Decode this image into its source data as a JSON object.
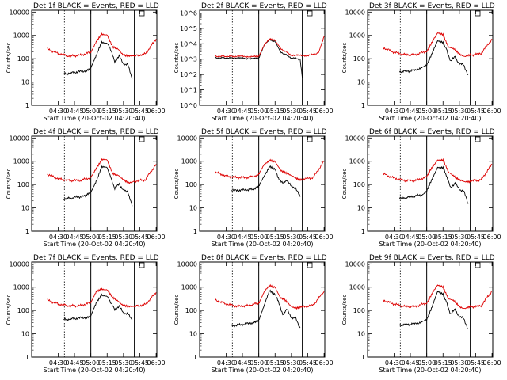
{
  "figure": {
    "grid": {
      "rows": 3,
      "cols": 3
    },
    "colors": {
      "events": "#000000",
      "lld": "#dd0000",
      "axes": "#000000",
      "background": "#ffffff"
    }
  },
  "chart_data": [
    {
      "type": "line",
      "title": "Det 1f BLACK = Events, RED = LLD",
      "xlabel": "Start Time (20-Oct-02 04:20:40)",
      "ylabel": "Counts/sec",
      "x_ticks": [
        "04:30",
        "04:45",
        "05:00",
        "05:15",
        "05:30",
        "05:45",
        "06:00"
      ],
      "y_tick_labels": [
        "1",
        "10",
        "100",
        "1000",
        "10000"
      ],
      "y_scale": "log",
      "ylim": [
        1,
        12000
      ],
      "xlim_minutes_after_start": [
        -15,
        100
      ],
      "vlines_solid": [
        "05:00",
        "05:40"
      ],
      "vlines_dotted": [
        "04:35",
        "05:40"
      ],
      "series": [
        {
          "color": "#000000",
          "x": [
            "04:35",
            "04:45",
            "04:55",
            "05:00",
            "05:05",
            "05:10",
            "05:15",
            "05:18",
            "05:22",
            "05:26",
            "05:30",
            "05:34",
            "05:38"
          ],
          "y": [
            22,
            26,
            30,
            42,
            130,
            520,
            480,
            250,
            75,
            130,
            60,
            55,
            14
          ]
        },
        {
          "color": "#dd0000",
          "x": [
            "04:20",
            "04:30",
            "04:40",
            "04:50",
            "05:00",
            "05:05",
            "05:10",
            "05:15",
            "05:20",
            "05:25",
            "05:30",
            "05:35",
            "05:40",
            "05:50",
            "06:00"
          ],
          "y": [
            260,
            170,
            130,
            140,
            190,
            500,
            1150,
            1100,
            300,
            260,
            150,
            125,
            130,
            160,
            700
          ]
        }
      ]
    },
    {
      "type": "line",
      "title": "Det 2f BLACK = Events, RED = LLD",
      "xlabel": "Start Time (20-Oct-02 04:20:40)",
      "ylabel": "Counts/sec",
      "x_ticks": [
        "04:30",
        "04:45",
        "05:00",
        "05:15",
        "05:30",
        "05:45",
        "06:00"
      ],
      "y_tick_labels": [
        "10^0",
        "10^1",
        "10^2",
        "10^3",
        "10^4",
        "10^5",
        "10^6"
      ],
      "y_scale": "log",
      "ylim": [
        1,
        1500000
      ],
      "xlim_minutes_after_start": [
        -15,
        100
      ],
      "vlines_solid": [
        "05:00",
        "05:40"
      ],
      "vlines_dotted": [
        "04:35",
        "05:40"
      ],
      "series": [
        {
          "color": "#000000",
          "x": [
            "04:20",
            "04:40",
            "04:55",
            "05:00",
            "05:05",
            "05:10",
            "05:15",
            "05:20",
            "05:30",
            "05:38",
            "05:40"
          ],
          "y": [
            1200,
            1150,
            1100,
            1200,
            8000,
            18000,
            15000,
            3000,
            1200,
            1000,
            60
          ]
        },
        {
          "color": "#dd0000",
          "x": [
            "04:20",
            "04:40",
            "04:55",
            "05:00",
            "05:05",
            "05:10",
            "05:15",
            "05:20",
            "05:30",
            "05:45",
            "05:55",
            "06:00"
          ],
          "y": [
            1500,
            1500,
            1500,
            1600,
            8000,
            20000,
            18000,
            5000,
            1800,
            1700,
            2500,
            30000
          ]
        }
      ]
    },
    {
      "type": "line",
      "title": "Det 3f BLACK = Events, RED = LLD",
      "xlabel": "Start Time (20-Oct-02 04:20:40)",
      "ylabel": "Counts/sec",
      "x_ticks": [
        "04:30",
        "04:45",
        "05:00",
        "05:15",
        "05:30",
        "05:45",
        "06:00"
      ],
      "y_tick_labels": [
        "1",
        "10",
        "100",
        "1000",
        "10000"
      ],
      "y_scale": "log",
      "ylim": [
        1,
        12000
      ],
      "xlim_minutes_after_start": [
        -15,
        100
      ],
      "vlines_solid": [
        "05:00",
        "05:40"
      ],
      "vlines_dotted": [
        "04:35",
        "05:40"
      ],
      "series": [
        {
          "color": "#000000",
          "x": [
            "04:35",
            "04:45",
            "04:55",
            "05:00",
            "05:05",
            "05:10",
            "05:15",
            "05:18",
            "05:22",
            "05:26",
            "05:30",
            "05:34",
            "05:38"
          ],
          "y": [
            28,
            30,
            38,
            55,
            180,
            550,
            500,
            260,
            80,
            120,
            60,
            55,
            20
          ]
        },
        {
          "color": "#dd0000",
          "x": [
            "04:20",
            "04:30",
            "04:40",
            "04:50",
            "05:00",
            "05:05",
            "05:10",
            "05:15",
            "05:20",
            "05:25",
            "05:30",
            "05:35",
            "05:40",
            "05:50",
            "06:00"
          ],
          "y": [
            300,
            190,
            150,
            150,
            210,
            550,
            1200,
            1100,
            330,
            250,
            160,
            130,
            140,
            170,
            700
          ]
        }
      ]
    },
    {
      "type": "line",
      "title": "Det 4f BLACK = Events, RED = LLD",
      "xlabel": "Start Time (20-Oct-02 04:20:40)",
      "ylabel": "Counts/sec",
      "x_ticks": [
        "04:30",
        "04:45",
        "05:00",
        "05:15",
        "05:30",
        "05:45",
        "06:00"
      ],
      "y_tick_labels": [
        "1",
        "10",
        "100",
        "1000",
        "10000"
      ],
      "y_scale": "log",
      "ylim": [
        1,
        12000
      ],
      "xlim_minutes_after_start": [
        -15,
        100
      ],
      "vlines_solid": [
        "05:00",
        "05:40"
      ],
      "vlines_dotted": [
        "04:35",
        "05:40"
      ],
      "series": [
        {
          "color": "#000000",
          "x": [
            "04:35",
            "04:45",
            "04:55",
            "05:00",
            "05:05",
            "05:10",
            "05:15",
            "05:18",
            "05:22",
            "05:26",
            "05:30",
            "05:34",
            "05:38"
          ],
          "y": [
            24,
            28,
            32,
            45,
            150,
            560,
            520,
            240,
            65,
            110,
            55,
            50,
            12
          ]
        },
        {
          "color": "#dd0000",
          "x": [
            "04:20",
            "04:30",
            "04:40",
            "04:50",
            "05:00",
            "05:05",
            "05:10",
            "05:15",
            "05:20",
            "05:25",
            "05:30",
            "05:35",
            "05:40",
            "05:50",
            "06:00"
          ],
          "y": [
            280,
            180,
            150,
            150,
            200,
            520,
            1150,
            1100,
            320,
            250,
            150,
            125,
            140,
            160,
            750
          ]
        }
      ]
    },
    {
      "type": "line",
      "title": "Det 5f BLACK = Events, RED = LLD",
      "xlabel": "Start Time (20-Oct-02 04:20:40)",
      "ylabel": "Counts/sec",
      "x_ticks": [
        "04:30",
        "04:45",
        "05:00",
        "05:15",
        "05:30",
        "05:45",
        "06:00"
      ],
      "y_tick_labels": [
        "1",
        "10",
        "100",
        "1000",
        "10000"
      ],
      "y_scale": "log",
      "ylim": [
        1,
        12000
      ],
      "xlim_minutes_after_start": [
        -15,
        100
      ],
      "vlines_solid": [
        "05:00",
        "05:40"
      ],
      "vlines_dotted": [
        "04:35",
        "05:40"
      ],
      "series": [
        {
          "color": "#000000",
          "x": [
            "04:35",
            "04:45",
            "04:55",
            "05:00",
            "05:05",
            "05:10",
            "05:15",
            "05:18",
            "05:22",
            "05:26",
            "05:30",
            "05:34",
            "05:38"
          ],
          "y": [
            55,
            58,
            62,
            80,
            240,
            620,
            420,
            200,
            110,
            160,
            80,
            70,
            30
          ]
        },
        {
          "color": "#dd0000",
          "x": [
            "04:20",
            "04:30",
            "04:40",
            "04:50",
            "05:00",
            "05:05",
            "05:10",
            "05:15",
            "05:20",
            "05:25",
            "05:30",
            "05:35",
            "05:40",
            "05:50",
            "06:00"
          ],
          "y": [
            340,
            230,
            200,
            200,
            260,
            750,
            1150,
            900,
            420,
            330,
            230,
            180,
            170,
            200,
            1000
          ]
        }
      ]
    },
    {
      "type": "line",
      "title": "Det 6f BLACK = Events, RED = LLD",
      "xlabel": "Start Time (20-Oct-02 04:20:40)",
      "ylabel": "Counts/sec",
      "x_ticks": [
        "04:30",
        "04:45",
        "05:00",
        "05:15",
        "05:30",
        "05:45",
        "06:00"
      ],
      "y_tick_labels": [
        "1",
        "10",
        "100",
        "1000",
        "10000"
      ],
      "y_scale": "log",
      "ylim": [
        1,
        12000
      ],
      "xlim_minutes_after_start": [
        -15,
        100
      ],
      "vlines_solid": [
        "05:00",
        "05:40"
      ],
      "vlines_dotted": [
        "04:35",
        "05:40"
      ],
      "series": [
        {
          "color": "#000000",
          "x": [
            "04:35",
            "04:45",
            "04:55",
            "05:00",
            "05:05",
            "05:10",
            "05:15",
            "05:18",
            "05:22",
            "05:26",
            "05:30",
            "05:34",
            "05:38"
          ],
          "y": [
            25,
            30,
            36,
            50,
            170,
            580,
            520,
            250,
            70,
            120,
            60,
            55,
            15
          ]
        },
        {
          "color": "#dd0000",
          "x": [
            "04:20",
            "04:30",
            "04:40",
            "04:50",
            "05:00",
            "05:05",
            "05:10",
            "05:15",
            "05:20",
            "05:25",
            "05:30",
            "05:35",
            "05:40",
            "05:50",
            "06:00"
          ],
          "y": [
            290,
            190,
            150,
            150,
            210,
            540,
            1200,
            1100,
            330,
            250,
            155,
            125,
            140,
            160,
            750
          ]
        }
      ]
    },
    {
      "type": "line",
      "title": "Det 7f BLACK = Events, RED = LLD",
      "xlabel": "Start Time (20-Oct-02 04:20:40)",
      "ylabel": "Counts/sec",
      "x_ticks": [
        "04:30",
        "04:45",
        "05:00",
        "05:15",
        "05:30",
        "05:45",
        "06:00"
      ],
      "y_tick_labels": [
        "1",
        "10",
        "100",
        "1000",
        "10000"
      ],
      "y_scale": "log",
      "ylim": [
        1,
        12000
      ],
      "xlim_minutes_after_start": [
        -15,
        100
      ],
      "vlines_solid": [
        "05:00",
        "05:40"
      ],
      "vlines_dotted": [
        "04:35",
        "05:40"
      ],
      "series": [
        {
          "color": "#000000",
          "x": [
            "04:35",
            "04:45",
            "04:55",
            "05:00",
            "05:05",
            "05:10",
            "05:15",
            "05:18",
            "05:22",
            "05:26",
            "05:30",
            "05:34",
            "05:38"
          ],
          "y": [
            40,
            45,
            50,
            60,
            200,
            480,
            420,
            220,
            110,
            150,
            80,
            70,
            40
          ]
        },
        {
          "color": "#dd0000",
          "x": [
            "04:20",
            "04:30",
            "04:40",
            "04:50",
            "05:00",
            "05:05",
            "05:10",
            "05:15",
            "05:20",
            "05:25",
            "05:30",
            "05:35",
            "05:40",
            "05:50",
            "06:00"
          ],
          "y": [
            280,
            190,
            160,
            160,
            220,
            600,
            850,
            800,
            340,
            260,
            170,
            140,
            150,
            180,
            600
          ]
        }
      ]
    },
    {
      "type": "line",
      "title": "Det 8f BLACK = Events, RED = LLD",
      "xlabel": "Start Time (20-Oct-02 04:20:40)",
      "ylabel": "Counts/sec",
      "x_ticks": [
        "04:30",
        "04:45",
        "05:00",
        "05:15",
        "05:30",
        "05:45",
        "06:00"
      ],
      "y_tick_labels": [
        "1",
        "10",
        "100",
        "1000",
        "10000"
      ],
      "y_scale": "log",
      "ylim": [
        1,
        12000
      ],
      "xlim_minutes_after_start": [
        -15,
        100
      ],
      "vlines_solid": [
        "05:00",
        "05:40"
      ],
      "vlines_dotted": [
        "04:35",
        "05:40"
      ],
      "series": [
        {
          "color": "#000000",
          "x": [
            "04:35",
            "04:45",
            "04:55",
            "05:00",
            "05:05",
            "05:10",
            "05:15",
            "05:18",
            "05:22",
            "05:26",
            "05:30",
            "05:34",
            "05:38"
          ],
          "y": [
            22,
            25,
            30,
            40,
            160,
            700,
            520,
            230,
            70,
            110,
            50,
            45,
            18
          ]
        },
        {
          "color": "#dd0000",
          "x": [
            "04:20",
            "04:30",
            "04:40",
            "04:50",
            "05:00",
            "05:05",
            "05:10",
            "05:15",
            "05:20",
            "05:25",
            "05:30",
            "05:35",
            "05:40",
            "05:50",
            "06:00"
          ],
          "y": [
            280,
            190,
            150,
            160,
            210,
            620,
            1150,
            1050,
            340,
            250,
            155,
            125,
            140,
            170,
            650
          ]
        }
      ]
    },
    {
      "type": "line",
      "title": "Det 9f BLACK = Events, RED = LLD",
      "xlabel": "Start Time (20-Oct-02 04:20:40)",
      "ylabel": "Counts/sec",
      "x_ticks": [
        "04:30",
        "04:45",
        "05:00",
        "05:15",
        "05:30",
        "05:45",
        "06:00"
      ],
      "y_tick_labels": [
        "1",
        "10",
        "100",
        "1000",
        "10000"
      ],
      "y_scale": "log",
      "ylim": [
        1,
        12000
      ],
      "xlim_minutes_after_start": [
        -15,
        100
      ],
      "vlines_solid": [
        "05:00",
        "05:40"
      ],
      "vlines_dotted": [
        "04:35",
        "05:40"
      ],
      "series": [
        {
          "color": "#000000",
          "x": [
            "04:35",
            "04:45",
            "04:55",
            "05:00",
            "05:05",
            "05:10",
            "05:15",
            "05:18",
            "05:22",
            "05:26",
            "05:30",
            "05:34",
            "05:38"
          ],
          "y": [
            24,
            26,
            30,
            42,
            150,
            620,
            520,
            230,
            70,
            110,
            55,
            45,
            16
          ]
        },
        {
          "color": "#dd0000",
          "x": [
            "04:20",
            "04:30",
            "04:40",
            "04:50",
            "05:00",
            "05:05",
            "05:10",
            "05:15",
            "05:20",
            "05:25",
            "05:30",
            "05:35",
            "05:40",
            "05:50",
            "06:00"
          ],
          "y": [
            280,
            190,
            150,
            150,
            210,
            560,
            1150,
            1050,
            330,
            250,
            150,
            125,
            140,
            160,
            700
          ]
        }
      ]
    }
  ]
}
